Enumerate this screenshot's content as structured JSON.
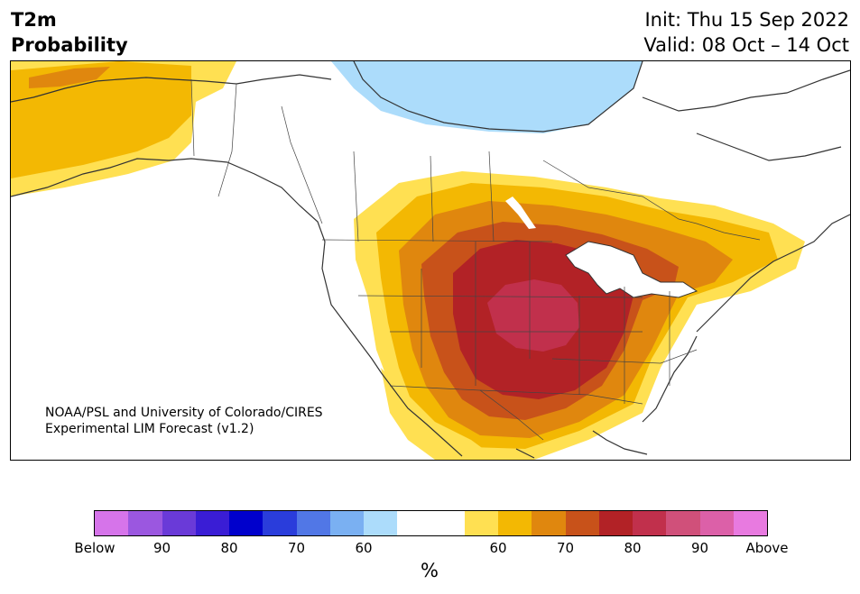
{
  "header": {
    "title_line1": "T2m",
    "title_line2": "Probability",
    "init": "Init: Thu 15 Sep 2022",
    "valid": "Valid: 08 Oct – 14 Oct"
  },
  "map": {
    "credit_line1": "NOAA/PSL and University of Colorado/CIRES",
    "credit_line2": "Experimental LIM Forecast (v1.2)",
    "region": "North America",
    "warm_core_region": "Central Plains / Midwest",
    "cool_region": "Hudson Bay / northern Canada"
  },
  "colorbar": {
    "unit_label": "%",
    "bins": [
      {
        "category": "below",
        "range": "95-100",
        "color": "#d674ea"
      },
      {
        "category": "below",
        "range": "90-95",
        "color": "#9b57e0"
      },
      {
        "category": "below",
        "range": "85-90",
        "color": "#6a3ad8"
      },
      {
        "category": "below",
        "range": "80-85",
        "color": "#3a1dd5"
      },
      {
        "category": "below",
        "range": "75-80",
        "color": "#0000cc"
      },
      {
        "category": "below",
        "range": "70-75",
        "color": "#2a3ddb"
      },
      {
        "category": "below",
        "range": "65-70",
        "color": "#5177e6"
      },
      {
        "category": "below",
        "range": "60-65",
        "color": "#7ab0f2"
      },
      {
        "category": "below",
        "range": "55-60",
        "color": "#acdcfb"
      },
      {
        "category": "neutral",
        "range": "<55",
        "color": "#ffffff"
      },
      {
        "category": "neutral",
        "range": "<55",
        "color": "#ffffff"
      },
      {
        "category": "above",
        "range": "55-60",
        "color": "#ffe052"
      },
      {
        "category": "above",
        "range": "60-65",
        "color": "#f3b803"
      },
      {
        "category": "above",
        "range": "65-70",
        "color": "#e0870e"
      },
      {
        "category": "above",
        "range": "70-75",
        "color": "#c8521a"
      },
      {
        "category": "above",
        "range": "75-80",
        "color": "#b22226"
      },
      {
        "category": "above",
        "range": "80-85",
        "color": "#c1304c"
      },
      {
        "category": "above",
        "range": "85-90",
        "color": "#d0507a"
      },
      {
        "category": "above",
        "range": "90-95",
        "color": "#dc60a8"
      },
      {
        "category": "above",
        "range": "95-100",
        "color": "#e87ae0"
      }
    ],
    "tick_labels": [
      "Below",
      "90",
      "80",
      "70",
      "60",
      "60",
      "70",
      "80",
      "90",
      "Above"
    ],
    "tick_bin_index": [
      0,
      2,
      4,
      6,
      8,
      12,
      14,
      16,
      18,
      20
    ]
  }
}
